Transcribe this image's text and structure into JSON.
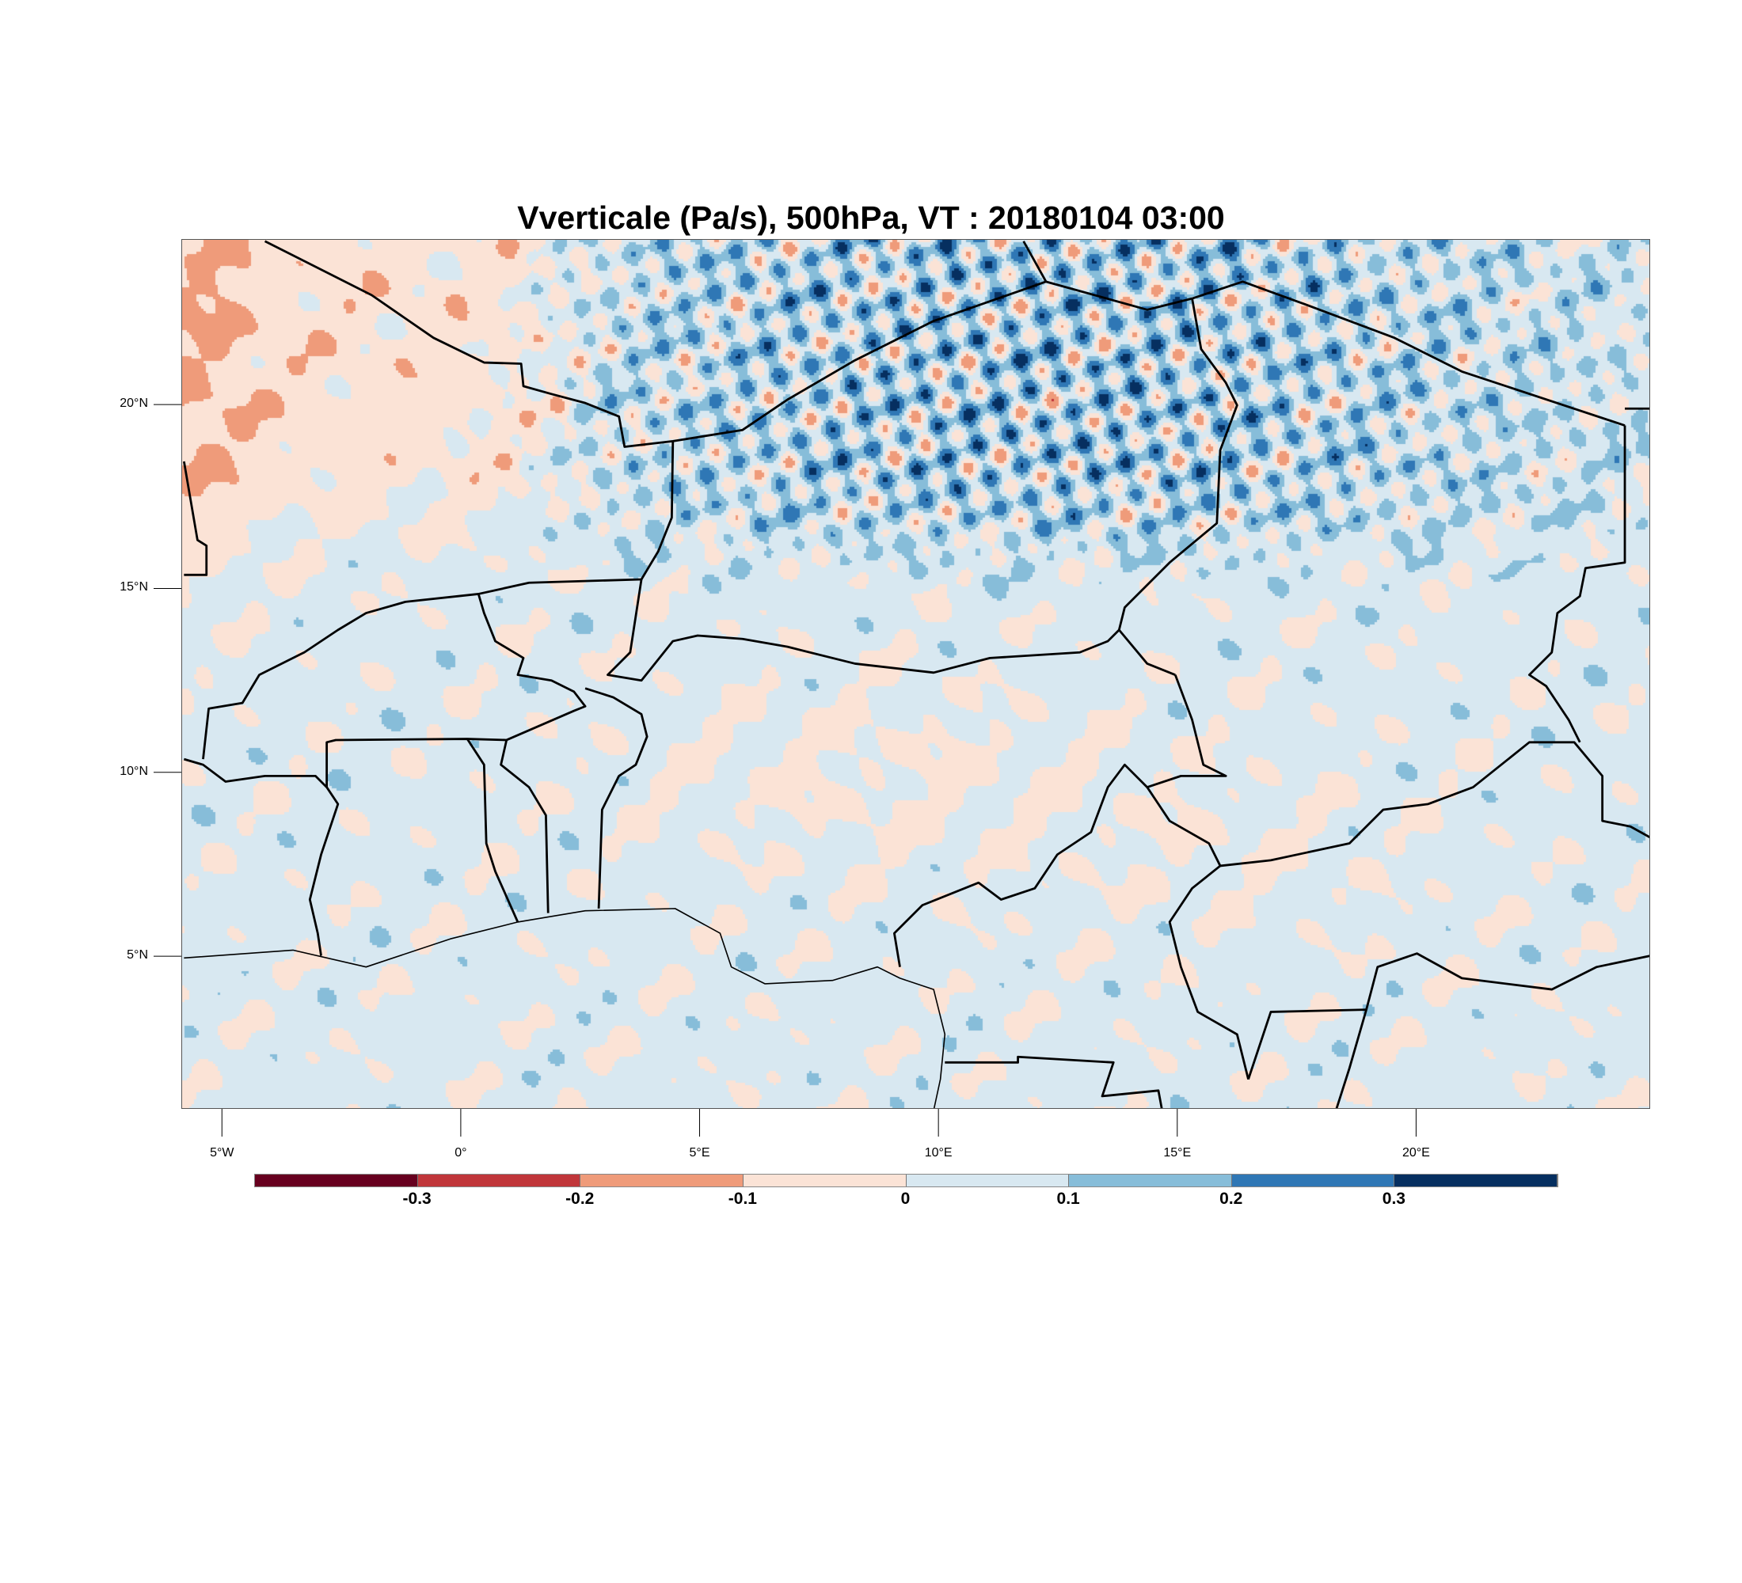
{
  "chart_data": {
    "type": "heatmap",
    "subtype": "filled-contour map",
    "title": "Vverticale (Pa/s), 500hPa, VT : 20180104  03:00",
    "variable": "Vertical velocity",
    "units": "Pa/s",
    "level": "500hPa",
    "valid_time": "20180104  03:00",
    "xlim": [
      -5.85,
      24.9
    ],
    "ylim": [
      0.85,
      24.5
    ],
    "x_ticks": [
      {
        "value": -5,
        "label": "5°W"
      },
      {
        "value": 0,
        "label": "0°"
      },
      {
        "value": 5,
        "label": "5°E"
      },
      {
        "value": 10,
        "label": "10°E"
      },
      {
        "value": 15,
        "label": "15°E"
      },
      {
        "value": 20,
        "label": "20°E"
      }
    ],
    "y_ticks": [
      {
        "value": 5,
        "label": "5°N"
      },
      {
        "value": 10,
        "label": "10°N"
      },
      {
        "value": 15,
        "label": "15°N"
      },
      {
        "value": 20,
        "label": "20°N"
      }
    ],
    "colorbar": {
      "levels": [
        -0.3,
        -0.2,
        -0.1,
        0,
        0.1,
        0.2,
        0.3
      ],
      "labels": [
        "-0.3",
        "-0.2",
        "-0.1",
        "0",
        "0.1",
        "0.2",
        "0.3"
      ],
      "colors": [
        "#67001f",
        "#c0363a",
        "#ef9b7a",
        "#fbe3d6",
        "#d8e8f1",
        "#87bdd9",
        "#2f77b5",
        "#062f60"
      ],
      "orientation": "horizontal",
      "placement": "bottom"
    },
    "field_summary": "Mostly weak positive values (0 to 0.1) with weak negative patches over NW Mali and Nigeria; strong alternating bands (-0.3 to >0.3) over northern Niger / southern Algeria-Libya"
  }
}
